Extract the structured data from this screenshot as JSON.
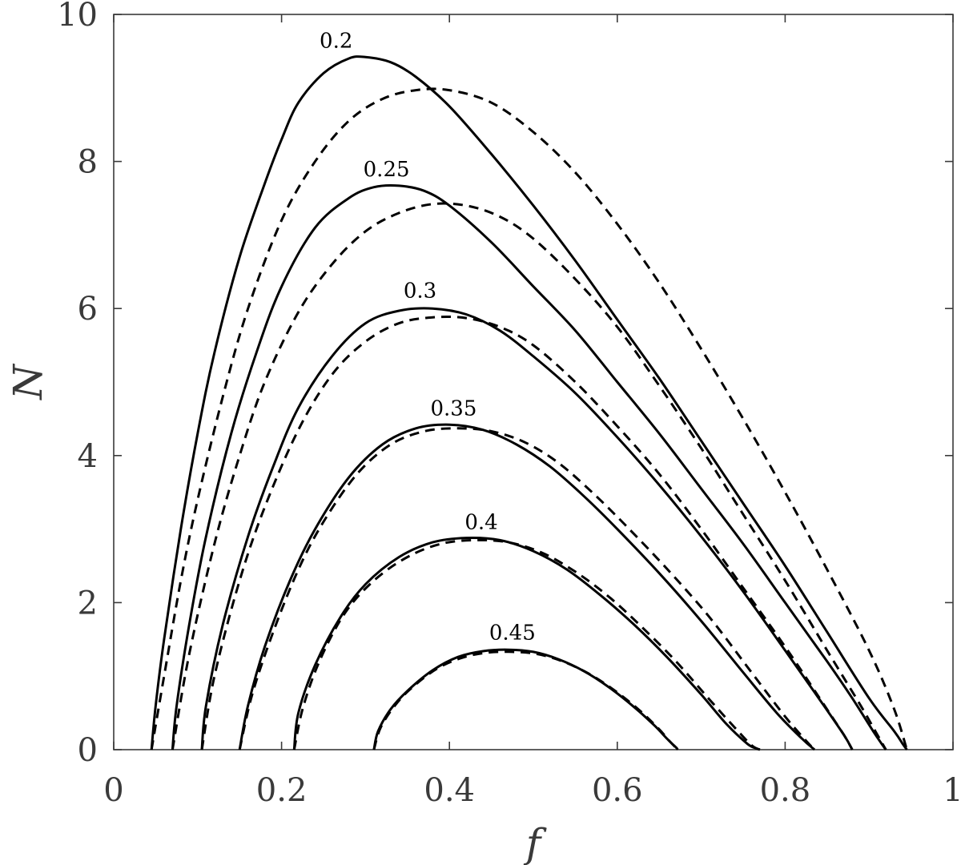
{
  "chart_data": {
    "type": "line",
    "title": "",
    "xlabel": "f",
    "ylabel": "N",
    "xlim": [
      0,
      1
    ],
    "ylim": [
      0,
      10
    ],
    "xticks": [
      "0",
      "0.2",
      "0.4",
      "0.6",
      "0.8",
      "1"
    ],
    "yticks": [
      "0",
      "2",
      "4",
      "6",
      "8",
      "10"
    ],
    "grid": false,
    "legend": "none",
    "series": [
      {
        "name": "0.2",
        "style": "solid",
        "x": [
          0.045,
          0.05,
          0.06,
          0.08,
          0.1,
          0.12,
          0.15,
          0.18,
          0.2,
          0.22,
          0.25,
          0.28,
          0.3,
          0.33,
          0.36,
          0.4,
          0.45,
          0.5,
          0.55,
          0.6,
          0.65,
          0.7,
          0.75,
          0.8,
          0.85,
          0.9,
          0.93,
          0.94,
          0.945
        ],
        "y": [
          0,
          0.6,
          1.5,
          3.0,
          4.3,
          5.4,
          6.7,
          7.7,
          8.3,
          8.8,
          9.2,
          9.4,
          9.42,
          9.35,
          9.15,
          8.75,
          8.1,
          7.4,
          6.65,
          5.85,
          5.05,
          4.2,
          3.35,
          2.5,
          1.6,
          0.7,
          0.25,
          0.08,
          0
        ]
      },
      {
        "name": "0.2",
        "style": "dashed",
        "x": [
          0.045,
          0.06,
          0.08,
          0.1,
          0.13,
          0.16,
          0.2,
          0.24,
          0.28,
          0.32,
          0.36,
          0.4,
          0.45,
          0.5,
          0.55,
          0.6,
          0.65,
          0.7,
          0.75,
          0.8,
          0.85,
          0.9,
          0.93,
          0.945
        ],
        "y": [
          0,
          1.0,
          2.3,
          3.4,
          4.8,
          6.0,
          7.2,
          8.0,
          8.55,
          8.85,
          8.97,
          8.97,
          8.8,
          8.4,
          7.85,
          7.15,
          6.35,
          5.45,
          4.5,
          3.5,
          2.45,
          1.35,
          0.55,
          0
        ]
      },
      {
        "name": "0.25",
        "style": "solid",
        "x": [
          0.07,
          0.075,
          0.09,
          0.11,
          0.14,
          0.17,
          0.2,
          0.24,
          0.28,
          0.31,
          0.34,
          0.37,
          0.4,
          0.45,
          0.5,
          0.55,
          0.6,
          0.65,
          0.7,
          0.75,
          0.8,
          0.85,
          0.88,
          0.905,
          0.915,
          0.92
        ],
        "y": [
          0,
          0.6,
          1.7,
          2.9,
          4.3,
          5.4,
          6.3,
          7.1,
          7.5,
          7.65,
          7.67,
          7.6,
          7.4,
          6.9,
          6.3,
          5.7,
          5.0,
          4.3,
          3.55,
          2.8,
          2.0,
          1.2,
          0.7,
          0.25,
          0.08,
          0
        ]
      },
      {
        "name": "0.25",
        "style": "dashed",
        "x": [
          0.07,
          0.09,
          0.12,
          0.15,
          0.18,
          0.22,
          0.26,
          0.3,
          0.34,
          0.38,
          0.42,
          0.46,
          0.5,
          0.55,
          0.6,
          0.65,
          0.7,
          0.75,
          0.8,
          0.85,
          0.89,
          0.91,
          0.92
        ],
        "y": [
          0,
          1.3,
          2.8,
          4.0,
          5.0,
          5.95,
          6.6,
          7.05,
          7.3,
          7.42,
          7.4,
          7.25,
          6.95,
          6.4,
          5.75,
          4.95,
          4.1,
          3.2,
          2.3,
          1.35,
          0.6,
          0.2,
          0
        ]
      },
      {
        "name": "0.3",
        "style": "solid",
        "x": [
          0.105,
          0.11,
          0.13,
          0.16,
          0.19,
          0.22,
          0.26,
          0.3,
          0.34,
          0.38,
          0.42,
          0.46,
          0.5,
          0.55,
          0.6,
          0.65,
          0.7,
          0.75,
          0.8,
          0.84,
          0.87,
          0.88
        ],
        "y": [
          0,
          0.6,
          1.7,
          2.9,
          3.85,
          4.65,
          5.35,
          5.8,
          5.97,
          6.0,
          5.92,
          5.7,
          5.35,
          4.85,
          4.25,
          3.6,
          2.9,
          2.15,
          1.35,
          0.7,
          0.2,
          0
        ]
      },
      {
        "name": "0.3",
        "style": "dashed",
        "x": [
          0.105,
          0.12,
          0.15,
          0.18,
          0.22,
          0.26,
          0.3,
          0.34,
          0.38,
          0.42,
          0.46,
          0.5,
          0.55,
          0.6,
          0.65,
          0.7,
          0.75,
          0.8,
          0.84,
          0.87,
          0.88
        ],
        "y": [
          0,
          1.0,
          2.3,
          3.3,
          4.35,
          5.1,
          5.55,
          5.8,
          5.88,
          5.87,
          5.75,
          5.5,
          5.0,
          4.4,
          3.75,
          3.0,
          2.2,
          1.4,
          0.72,
          0.2,
          0
        ]
      },
      {
        "name": "0.35",
        "style": "solid",
        "x": [
          0.15,
          0.16,
          0.18,
          0.21,
          0.24,
          0.28,
          0.32,
          0.36,
          0.4,
          0.44,
          0.48,
          0.52,
          0.56,
          0.6,
          0.65,
          0.7,
          0.75,
          0.79,
          0.82,
          0.835
        ],
        "y": [
          0,
          0.6,
          1.4,
          2.3,
          3.0,
          3.7,
          4.15,
          4.37,
          4.42,
          4.35,
          4.15,
          3.85,
          3.45,
          3.0,
          2.4,
          1.75,
          1.05,
          0.5,
          0.15,
          0
        ]
      },
      {
        "name": "0.35",
        "style": "dashed",
        "x": [
          0.15,
          0.165,
          0.19,
          0.22,
          0.25,
          0.29,
          0.33,
          0.37,
          0.41,
          0.45,
          0.49,
          0.53,
          0.57,
          0.61,
          0.66,
          0.71,
          0.76,
          0.8,
          0.825,
          0.835
        ],
        "y": [
          0,
          0.75,
          1.6,
          2.45,
          3.1,
          3.75,
          4.15,
          4.33,
          4.37,
          4.33,
          4.18,
          3.9,
          3.5,
          3.05,
          2.45,
          1.8,
          1.05,
          0.45,
          0.12,
          0
        ]
      },
      {
        "name": "0.4",
        "style": "solid",
        "x": [
          0.215,
          0.22,
          0.24,
          0.27,
          0.3,
          0.34,
          0.38,
          0.42,
          0.46,
          0.5,
          0.54,
          0.58,
          0.62,
          0.66,
          0.7,
          0.73,
          0.755,
          0.765,
          0.77
        ],
        "y": [
          0,
          0.5,
          1.15,
          1.8,
          2.25,
          2.62,
          2.82,
          2.88,
          2.85,
          2.7,
          2.45,
          2.1,
          1.7,
          1.25,
          0.75,
          0.35,
          0.08,
          0.02,
          0
        ]
      },
      {
        "name": "0.4",
        "style": "dashed",
        "x": [
          0.215,
          0.225,
          0.245,
          0.275,
          0.31,
          0.35,
          0.39,
          0.43,
          0.47,
          0.51,
          0.55,
          0.59,
          0.63,
          0.67,
          0.71,
          0.74,
          0.76,
          0.77
        ],
        "y": [
          0,
          0.55,
          1.2,
          1.85,
          2.3,
          2.62,
          2.8,
          2.85,
          2.82,
          2.68,
          2.42,
          2.08,
          1.66,
          1.2,
          0.68,
          0.3,
          0.06,
          0
        ]
      },
      {
        "name": "0.45",
        "style": "solid",
        "x": [
          0.31,
          0.315,
          0.33,
          0.35,
          0.38,
          0.41,
          0.44,
          0.47,
          0.5,
          0.53,
          0.56,
          0.59,
          0.62,
          0.645,
          0.66,
          0.67,
          0.672
        ],
        "y": [
          0,
          0.25,
          0.55,
          0.8,
          1.08,
          1.26,
          1.34,
          1.36,
          1.33,
          1.23,
          1.07,
          0.85,
          0.58,
          0.32,
          0.14,
          0.03,
          0
        ]
      },
      {
        "name": "0.45",
        "style": "dashed",
        "x": [
          0.31,
          0.318,
          0.335,
          0.355,
          0.385,
          0.415,
          0.445,
          0.475,
          0.505,
          0.535,
          0.565,
          0.595,
          0.625,
          0.648,
          0.662,
          0.672
        ],
        "y": [
          0,
          0.3,
          0.6,
          0.84,
          1.1,
          1.25,
          1.32,
          1.33,
          1.3,
          1.2,
          1.04,
          0.82,
          0.55,
          0.3,
          0.12,
          0
        ]
      }
    ],
    "curve_labels": [
      {
        "text": "0.2",
        "x": 0.265,
        "y": 9.55
      },
      {
        "text": "0.25",
        "x": 0.325,
        "y": 7.8
      },
      {
        "text": "0.3",
        "x": 0.365,
        "y": 6.15
      },
      {
        "text": "0.35",
        "x": 0.405,
        "y": 4.55
      },
      {
        "text": "0.4",
        "x": 0.438,
        "y": 3.0
      },
      {
        "text": "0.45",
        "x": 0.475,
        "y": 1.5
      }
    ]
  }
}
